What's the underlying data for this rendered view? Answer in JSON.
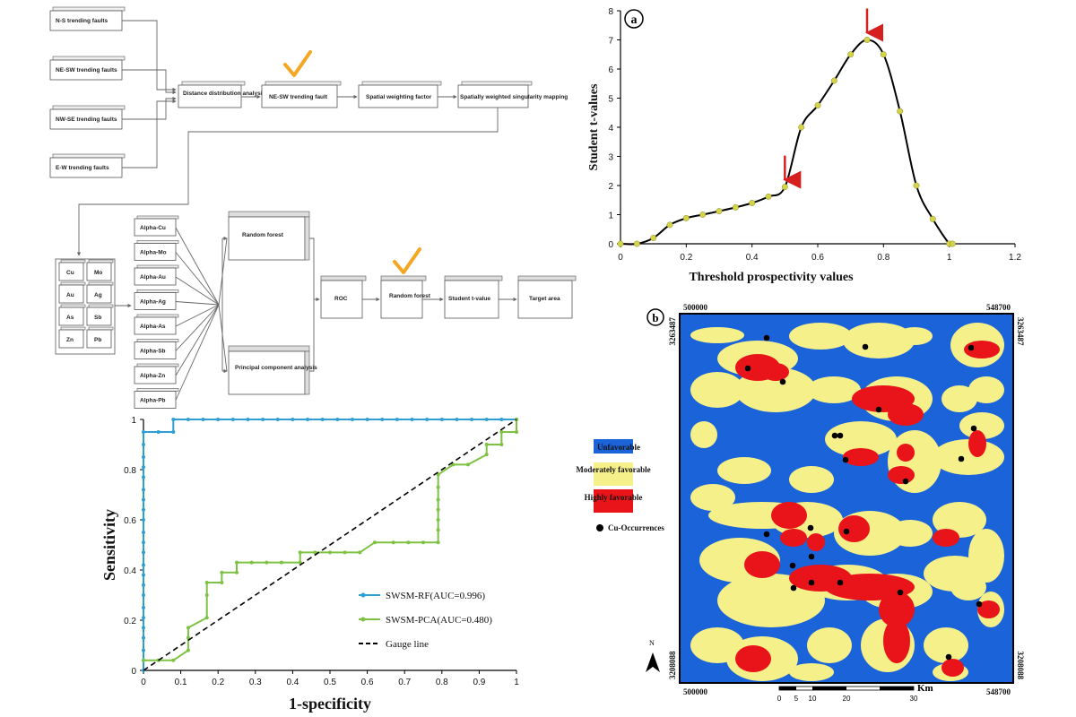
{
  "flowchart": {
    "faults": [
      "N-S trending faults",
      "NE-SW trending faults",
      "NW-SE trending faults",
      "E-W trending faults"
    ],
    "row1": [
      "Distance distribution analysis",
      "NE-SW trending fault",
      "Spatial weighting factor",
      "Spatially weighted singularity mapping"
    ],
    "elements": [
      "Cu",
      "Mo",
      "Au",
      "Ag",
      "As",
      "Sb",
      "Zn",
      "Pb"
    ],
    "alphas": [
      "Alpha-Cu",
      "Alpha-Mo",
      "Alpha-Au",
      "Alpha-Ag",
      "Alpha-As",
      "Alpha-Sb",
      "Alpha-Zn",
      "Alpha-Pb"
    ],
    "methods": [
      "Random forest",
      "Principal component analysis"
    ],
    "row2": [
      "ROC",
      "Random forest",
      "Student t-value",
      "Target area"
    ],
    "check_color": "#f5a623"
  },
  "chart_data": [
    {
      "type": "line",
      "panel_label": "a",
      "xlabel": "Threshold prospectivity values",
      "ylabel": "Student t-values",
      "xlim": [
        0,
        1.2
      ],
      "ylim": [
        0,
        8
      ],
      "xticks": [
        "0",
        "0.2",
        "0.4",
        "0.6",
        "0.8",
        "1",
        "1.2"
      ],
      "yticks": [
        "0",
        "1",
        "2",
        "3",
        "4",
        "5",
        "6",
        "7",
        "8"
      ],
      "x": [
        0,
        0.05,
        0.1,
        0.15,
        0.2,
        0.25,
        0.3,
        0.35,
        0.4,
        0.45,
        0.5,
        0.55,
        0.6,
        0.65,
        0.7,
        0.75,
        0.8,
        0.85,
        0.9,
        0.95,
        1.0,
        1.01
      ],
      "y": [
        0,
        0,
        0.2,
        0.65,
        0.88,
        1.0,
        1.12,
        1.25,
        1.4,
        1.62,
        1.95,
        4.0,
        4.75,
        5.6,
        6.5,
        7.0,
        6.5,
        4.55,
        2.0,
        0.85,
        0,
        0
      ],
      "line_color": "#000000",
      "marker_color": "#d4d44a",
      "arrow_color": "#d62020",
      "arrows_at": [
        0.5,
        0.75
      ]
    },
    {
      "type": "line",
      "xlabel": "1-specificity",
      "ylabel": "Sensitivity",
      "xlim": [
        0,
        1
      ],
      "ylim": [
        0,
        1
      ],
      "xticks": [
        "0",
        "0.1",
        "0.2",
        "0.3",
        "0.4",
        "0.5",
        "0.6",
        "0.7",
        "0.8",
        "0.9",
        "1"
      ],
      "yticks": [
        "0",
        "0.2",
        "0.4",
        "0.6",
        "0.8",
        "1"
      ],
      "series": [
        {
          "name": "SWSM-RF(AUC=0.996)",
          "color": "#2e9fd1",
          "x": [
            0,
            0,
            0,
            0,
            0,
            0,
            0,
            0,
            0,
            0,
            0,
            0,
            0,
            0,
            0,
            0,
            0,
            0,
            0,
            0,
            0,
            0,
            0,
            0.04,
            0.08,
            0.08,
            0.12,
            0.16,
            0.2,
            0.24,
            0.28,
            0.32,
            0.36,
            0.4,
            0.44,
            0.48,
            0.52,
            0.56,
            0.6,
            0.64,
            0.68,
            0.72,
            0.76,
            0.8,
            0.84,
            0.88,
            0.92,
            0.96,
            1.0
          ],
          "y": [
            0,
            0.04,
            0.08,
            0.13,
            0.17,
            0.21,
            0.25,
            0.3,
            0.34,
            0.38,
            0.42,
            0.47,
            0.51,
            0.55,
            0.6,
            0.64,
            0.68,
            0.72,
            0.77,
            0.81,
            0.85,
            0.9,
            0.95,
            0.95,
            0.95,
            1.0,
            1.0,
            1.0,
            1.0,
            1.0,
            1.0,
            1.0,
            1.0,
            1.0,
            1.0,
            1.0,
            1.0,
            1.0,
            1.0,
            1.0,
            1.0,
            1.0,
            1.0,
            1.0,
            1.0,
            1.0,
            1.0,
            1.0,
            1.0
          ]
        },
        {
          "name": "SWSM-PCA(AUC=0.480)",
          "color": "#7dc242",
          "x": [
            0,
            0.04,
            0.08,
            0.12,
            0.12,
            0.12,
            0.17,
            0.17,
            0.17,
            0.21,
            0.21,
            0.25,
            0.25,
            0.29,
            0.33,
            0.37,
            0.42,
            0.42,
            0.46,
            0.5,
            0.54,
            0.58,
            0.62,
            0.67,
            0.71,
            0.75,
            0.79,
            0.79,
            0.79,
            0.79,
            0.79,
            0.79,
            0.79,
            0.83,
            0.87,
            0.92,
            0.92,
            0.96,
            0.96,
            1.0,
            1.0
          ],
          "y": [
            0.04,
            0.04,
            0.04,
            0.08,
            0.13,
            0.17,
            0.21,
            0.3,
            0.35,
            0.35,
            0.39,
            0.39,
            0.43,
            0.43,
            0.43,
            0.43,
            0.43,
            0.47,
            0.47,
            0.47,
            0.47,
            0.47,
            0.51,
            0.51,
            0.51,
            0.51,
            0.51,
            0.56,
            0.6,
            0.64,
            0.68,
            0.73,
            0.78,
            0.82,
            0.82,
            0.86,
            0.9,
            0.9,
            0.95,
            0.95,
            1.0
          ]
        },
        {
          "name": "Gauge line",
          "color": "#000000",
          "dashed": true,
          "x": [
            0,
            1
          ],
          "y": [
            0,
            1
          ]
        }
      ]
    }
  ],
  "map": {
    "panel_label": "b",
    "coord_top_left": "500000",
    "coord_top_right": "548700",
    "coord_left_top": "3263487",
    "coord_right_top": "3263487",
    "coord_left_bottom": "3208088",
    "coord_right_bottom": "3208088",
    "coord_bottom_left": "500000",
    "coord_bottom_right": "548700",
    "north": "N",
    "scale_ticks": [
      "0",
      "5",
      "10",
      "20",
      "30"
    ],
    "scale_unit": "Km",
    "legend": [
      {
        "label": "Unfavorable",
        "color": "#1b63d8"
      },
      {
        "label": "Moderately favorable",
        "color": "#f5f08a"
      },
      {
        "label": "Highly favorable",
        "color": "#e8141a"
      },
      {
        "label": "Cu-Occurrences",
        "color": "#000000"
      }
    ]
  }
}
